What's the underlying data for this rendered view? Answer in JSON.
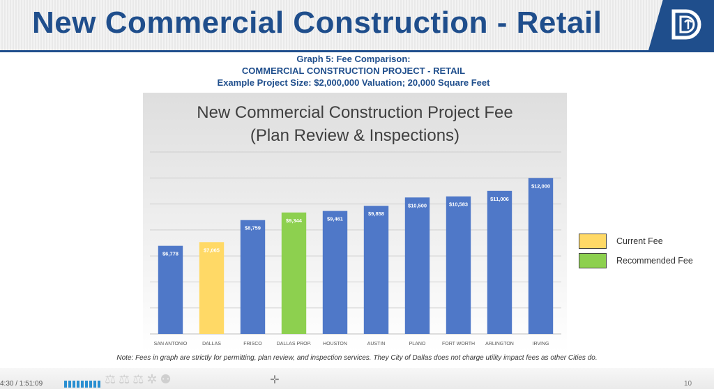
{
  "slide": {
    "title": "New Commercial Construction - Retail",
    "subtitle_lines": [
      "Graph 5: Fee Comparison:",
      "COMMERCIAL CONSTRUCTION PROJECT - RETAIL",
      "Example Project Size: $2,000,000 Valuation; 20,000 Square Feet"
    ],
    "note": "Note: Fees in graph are strictly for permitting, plan review, and inspection services. They City of Dallas does not charge utility impact fees as other Cities do.",
    "page_number": "10"
  },
  "player": {
    "timestamp": "4:30 / 1:51:09",
    "progress": 0.04
  },
  "colors": {
    "brand": "#1f4e8c",
    "bar_default": "#4f78c8",
    "bar_current": "#ffd966",
    "bar_recommended": "#8dd04f"
  },
  "chart_data": {
    "type": "bar",
    "title_lines": [
      "New Commercial Construction Project Fee",
      "(Plan Review & Inspections)"
    ],
    "categories": [
      "SAN ANTONIO",
      "DALLAS",
      "FRISCO",
      "DALLAS PROP.",
      "HOUSTON",
      "AUSTIN",
      "PLANO",
      "FORT WORTH",
      "ARLINGTON",
      "IRVING"
    ],
    "values": [
      6778,
      7065,
      8759,
      9344,
      9461,
      9858,
      10500,
      10583,
      11006,
      12000
    ],
    "labels": [
      "$6,778",
      "$7,065",
      "$8,759",
      "$9,344",
      "$9,461",
      "$9,858",
      "$10,500",
      "$10,583",
      "$11,006",
      "$12,000"
    ],
    "bar_color_keys": [
      "bar_default",
      "bar_current",
      "bar_default",
      "bar_recommended",
      "bar_default",
      "bar_default",
      "bar_default",
      "bar_default",
      "bar_default",
      "bar_default"
    ],
    "ylim": [
      0,
      14000
    ],
    "grid": true,
    "legend_position": "right",
    "legend": [
      {
        "label": "Current Fee",
        "color_key": "bar_current"
      },
      {
        "label": "Recommended Fee",
        "color_key": "bar_recommended"
      }
    ]
  }
}
